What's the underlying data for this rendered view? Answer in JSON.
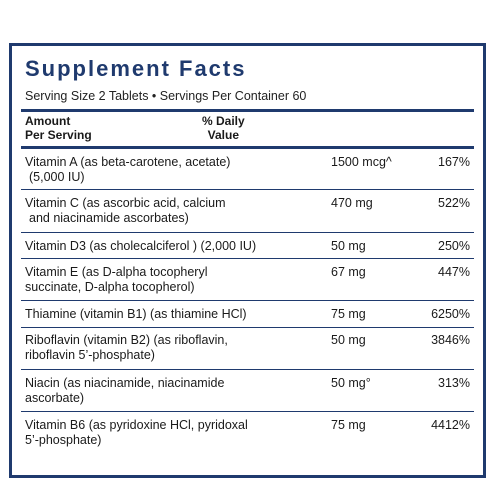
{
  "title": "Supplement Facts",
  "serving": "Serving Size 2 Tablets • Servings Per Container 60",
  "header": {
    "amount": "Amount",
    "per_serving": "Per Serving",
    "daily": "% Daily",
    "value": "Value"
  },
  "rows": [
    {
      "name": "Vitamin A (as beta-carotene, acetate)",
      "name2": "(5,000 IU)",
      "amount": "1500 mcg^",
      "dv": "167%"
    },
    {
      "name": "Vitamin C (as ascorbic acid, calcium",
      "name2": "and niacinamide ascorbates)",
      "amount": "470 mg",
      "dv": "522%"
    },
    {
      "name": "Vitamin D3 (as cholecalciferol ) (2,000 IU)",
      "name2": "",
      "amount": "50 mg",
      "dv": "250%"
    },
    {
      "name": "Vitamin E (as D-alpha tocopheryl",
      "name2": "succinate, D-alpha tocopherol)",
      "amount": "67 mg",
      "dv": "447%"
    },
    {
      "name": "Thiamine (vitamin B1) (as thiamine HCl)",
      "name2": "",
      "amount": "75 mg",
      "dv": "6250%"
    },
    {
      "name": "Riboflavin (vitamin B2) (as riboflavin,",
      "name2": "riboflavin 5’-phosphate)",
      "amount": "50 mg",
      "dv": "3846%"
    },
    {
      "name": "Niacin (as niacinamide, niacinamide",
      "name2": "ascorbate)",
      "amount": "50 mg°",
      "dv": "313%"
    },
    {
      "name": "Vitamin B6 (as pyridoxine HCl, pyridoxal",
      "name2": "5’-phosphate)",
      "amount": "75 mg",
      "dv": "4412%"
    }
  ]
}
